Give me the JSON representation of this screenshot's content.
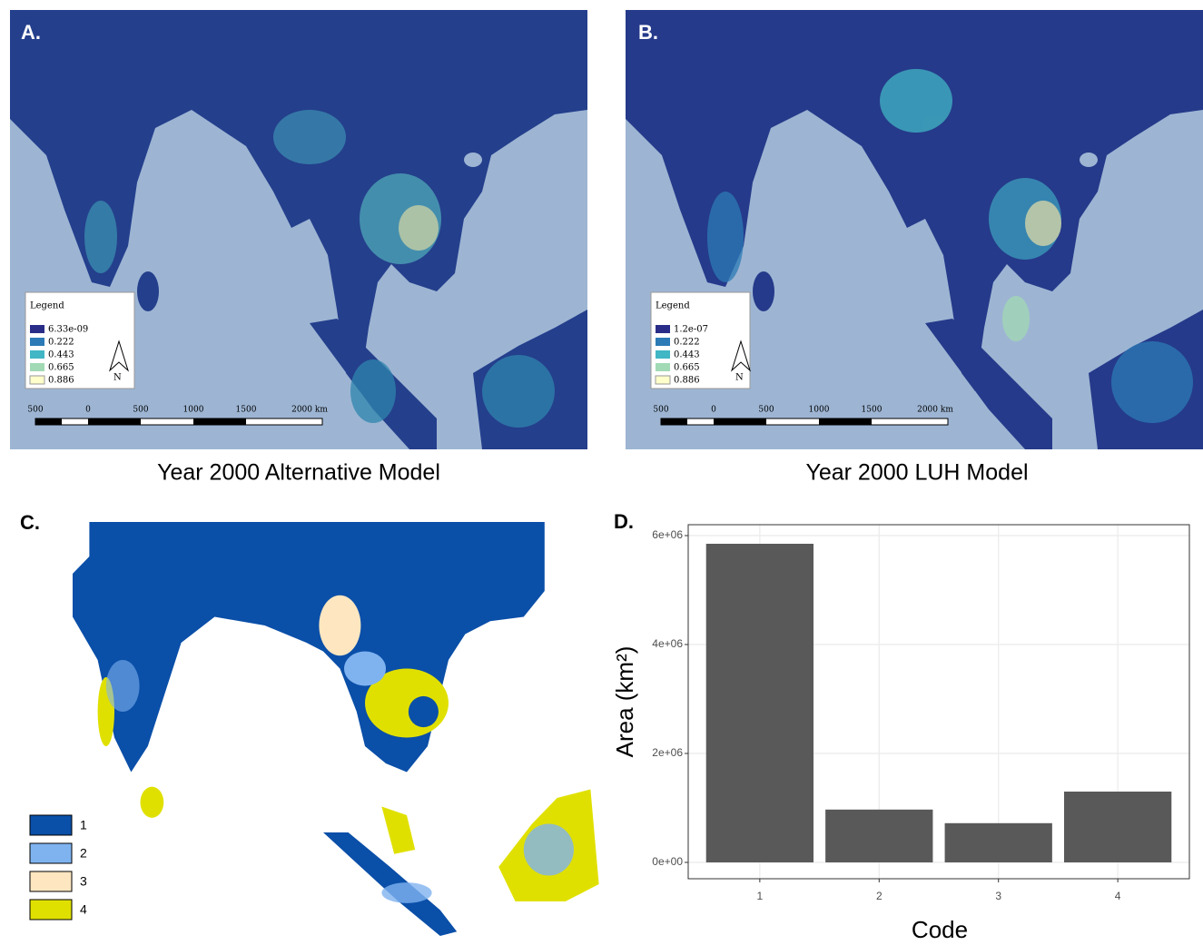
{
  "maps": {
    "A": {
      "panel_label": "A.",
      "caption": "Year 2000 Alternative Model",
      "legend_title": "Legend",
      "legend": [
        "6.33e-09",
        "0.222",
        "0.443",
        "0.665",
        "0.886"
      ],
      "scale_labels": [
        "500",
        "0",
        "500",
        "1000",
        "1500",
        "2000 km"
      ],
      "north": "N"
    },
    "B": {
      "panel_label": "B.",
      "caption": "Year 2000 LUH Model",
      "legend_title": "Legend",
      "legend": [
        "1.2e-07",
        "0.222",
        "0.443",
        "0.665",
        "0.886"
      ],
      "scale_labels": [
        "500",
        "0",
        "500",
        "1000",
        "1500",
        "2000 km"
      ],
      "north": "N"
    },
    "C": {
      "panel_label": "C.",
      "legend": [
        "1",
        "2",
        "3",
        "4"
      ]
    }
  },
  "chart_data": {
    "type": "bar",
    "panel_label": "D.",
    "categories": [
      "1",
      "2",
      "3",
      "4"
    ],
    "values": [
      5850000,
      970000,
      720000,
      1300000
    ],
    "color": "#595959",
    "x_label": "Code",
    "y_label": "Area (km²)",
    "ylim": [
      -300000,
      6200000
    ],
    "yticks": [
      {
        "value": 0,
        "label": "0e+00"
      },
      {
        "value": 2000000,
        "label": "2e+06"
      },
      {
        "value": 4000000,
        "label": "4e+06"
      },
      {
        "value": 6000000,
        "label": "6e+06"
      }
    ],
    "grid": true
  }
}
